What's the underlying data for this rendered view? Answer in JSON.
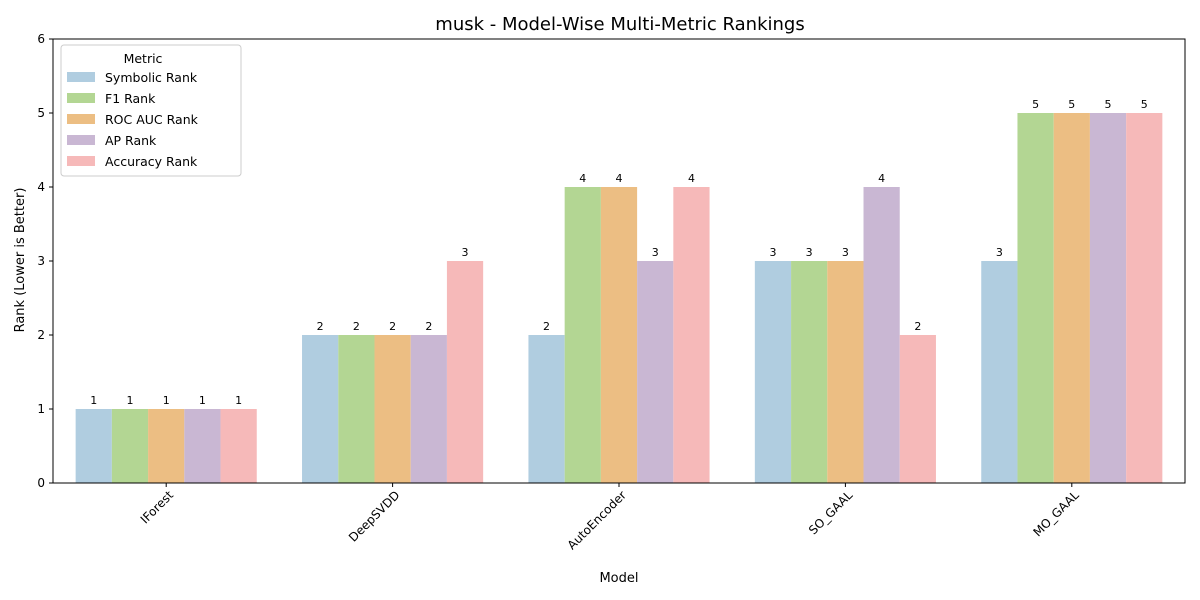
{
  "chart_data": {
    "type": "bar",
    "title": "musk - Model-Wise Multi-Metric Rankings",
    "xlabel": "Model",
    "ylabel": "Rank (Lower is Better)",
    "ylim": [
      0,
      6
    ],
    "yticks": [
      "0",
      "1",
      "2",
      "3",
      "4",
      "5",
      "6"
    ],
    "categories": [
      "IForest",
      "DeepSVDD",
      "AutoEncoder",
      "SO_GAAL",
      "MO_GAAL"
    ],
    "legend": {
      "title": "Metric",
      "position": "top-left"
    },
    "series": [
      {
        "name": "Symbolic Rank",
        "color": "#b0cde0",
        "values": [
          1,
          2,
          2,
          3,
          3
        ]
      },
      {
        "name": "F1 Rank",
        "color": "#b3d693",
        "values": [
          1,
          2,
          4,
          3,
          5
        ]
      },
      {
        "name": "ROC AUC Rank",
        "color": "#ecbe83",
        "values": [
          1,
          2,
          4,
          3,
          5
        ]
      },
      {
        "name": "AP Rank",
        "color": "#c9b7d3",
        "values": [
          1,
          2,
          3,
          4,
          5
        ]
      },
      {
        "name": "Accuracy Rank",
        "color": "#f6b9b9",
        "values": [
          1,
          3,
          4,
          2,
          5
        ]
      }
    ],
    "grid": false
  }
}
